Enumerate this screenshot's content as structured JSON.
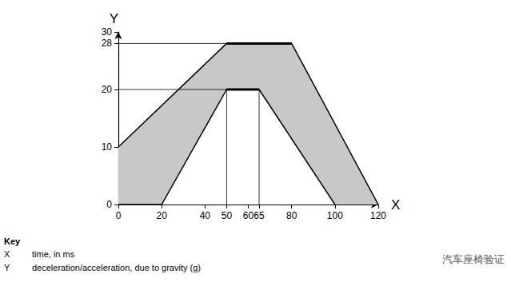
{
  "chart_data": {
    "type": "corridor",
    "x_label": "X",
    "y_label": "Y",
    "upper": {
      "x": [
        0,
        50,
        80,
        120
      ],
      "values": [
        10,
        28,
        28,
        0
      ]
    },
    "lower": {
      "x": [
        0,
        20,
        50,
        65,
        100
      ],
      "values": [
        0,
        0,
        20,
        20,
        0
      ]
    },
    "guide_lines": [
      {
        "x": [
          0,
          50
        ],
        "values": [
          28,
          28
        ]
      },
      {
        "x": [
          0,
          50
        ],
        "values": [
          20,
          20
        ]
      },
      {
        "x": [
          50,
          50
        ],
        "values": [
          0,
          20
        ]
      },
      {
        "x": [
          65,
          65
        ],
        "values": [
          0,
          20
        ]
      }
    ],
    "xlim": [
      0,
      120
    ],
    "ylim": [
      0,
      30
    ],
    "xticks": [
      0,
      20,
      40,
      50,
      60,
      65,
      80,
      100,
      120
    ],
    "yticks": [
      0,
      10,
      20,
      28,
      30
    ],
    "grid": false,
    "color": "#c8c8c8",
    "key": {
      "title": "Key",
      "entries": [
        {
          "symbol": "X",
          "text": "time, in ms"
        },
        {
          "symbol": "Y",
          "text": "deceleration/acceleration, due to gravity (g)"
        }
      ]
    },
    "annotation": "汽车座椅验证"
  }
}
